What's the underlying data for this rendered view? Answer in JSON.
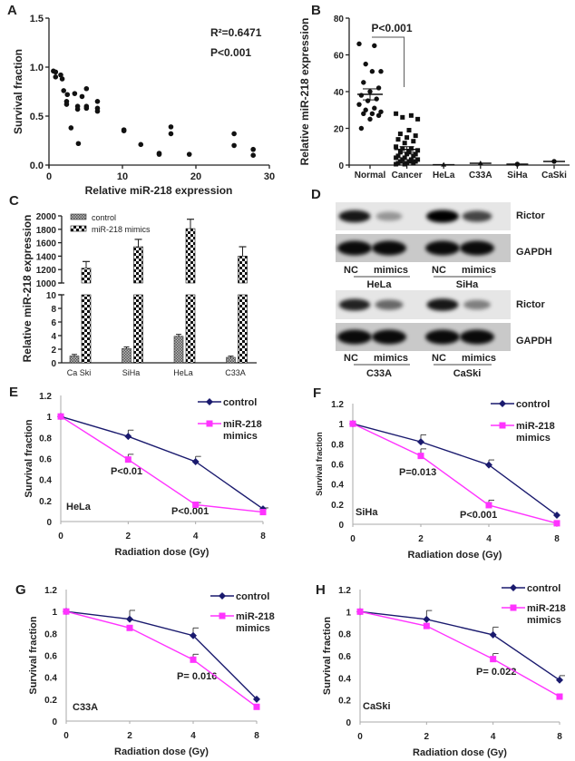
{
  "figure": {
    "panel_letters": [
      "A",
      "B",
      "C",
      "D",
      "E",
      "F",
      "G",
      "H"
    ]
  },
  "chart_data": [
    {
      "panel": "A",
      "type": "scatter",
      "xlabel": "Relative miR-218 expression",
      "ylabel": "Survival fraction",
      "xlim": [
        0,
        30
      ],
      "ylim": [
        0,
        1.5
      ],
      "xticks": [
        "0",
        "10",
        "20",
        "30"
      ],
      "yticks": [
        "0.0",
        "0.5",
        "1.0",
        "1.5"
      ],
      "annotations": [
        "R²=0.6471",
        "P<0.001"
      ],
      "points": [
        [
          0.6,
          0.96
        ],
        [
          0.9,
          0.95
        ],
        [
          0.9,
          0.9
        ],
        [
          1.6,
          0.92
        ],
        [
          1.8,
          0.88
        ],
        [
          2.0,
          0.76
        ],
        [
          2.4,
          0.65
        ],
        [
          2.4,
          0.62
        ],
        [
          2.5,
          0.72
        ],
        [
          3.0,
          0.38
        ],
        [
          3.5,
          0.73
        ],
        [
          3.9,
          0.6
        ],
        [
          3.9,
          0.57
        ],
        [
          4.0,
          0.22
        ],
        [
          4.5,
          0.7
        ],
        [
          5.1,
          0.78
        ],
        [
          5.1,
          0.6
        ],
        [
          5.1,
          0.58
        ],
        [
          6.6,
          0.65
        ],
        [
          6.6,
          0.58
        ],
        [
          6.6,
          0.55
        ],
        [
          10.2,
          0.36
        ],
        [
          10.2,
          0.35
        ],
        [
          12.5,
          0.21
        ],
        [
          15.0,
          0.12
        ],
        [
          15.0,
          0.11
        ],
        [
          16.6,
          0.39
        ],
        [
          16.6,
          0.32
        ],
        [
          19.1,
          0.11
        ],
        [
          25.2,
          0.32
        ],
        [
          25.2,
          0.2
        ],
        [
          27.8,
          0.16
        ],
        [
          27.8,
          0.1
        ]
      ]
    },
    {
      "panel": "B",
      "type": "scatter",
      "ylabel": "Relative miR-218 expression",
      "ylim": [
        0,
        80
      ],
      "yticks": [
        "0",
        "20",
        "40",
        "60",
        "80"
      ],
      "categories": [
        "Normal",
        "Cancer",
        "HeLa",
        "C33A",
        "SiHa",
        "CaSki"
      ],
      "annotations": [
        "P<0.001"
      ],
      "groups": [
        {
          "name": "Normal",
          "marker": "circle",
          "mean": 38.5,
          "sem": 3,
          "values": [
            66,
            65,
            55,
            51,
            51,
            45,
            42,
            40,
            38,
            36,
            35,
            33,
            31,
            30,
            29,
            28,
            28,
            27,
            25,
            20
          ]
        },
        {
          "name": "Cancer",
          "marker": "square",
          "mean": 8.5,
          "sem": 1.5,
          "values": [
            28,
            27,
            26,
            25,
            19,
            17,
            16,
            15,
            14,
            13,
            12,
            10,
            9,
            9,
            8,
            7,
            7,
            6,
            6,
            5,
            5,
            4,
            4,
            3,
            3,
            3,
            2,
            2,
            2,
            1,
            1,
            1,
            0.5,
            0.5
          ]
        },
        {
          "name": "HeLa",
          "marker": "triangle",
          "mean": 0.2,
          "sem": 0,
          "values": [
            0.2
          ]
        },
        {
          "name": "C33A",
          "marker": "triangle",
          "mean": 1.0,
          "sem": 0,
          "values": [
            1.0
          ]
        },
        {
          "name": "SiHa",
          "marker": "diamond",
          "mean": 0.5,
          "sem": 0,
          "values": [
            0.5
          ]
        },
        {
          "name": "CaSki",
          "marker": "circle",
          "mean": 2.0,
          "sem": 0,
          "values": [
            2.0
          ]
        }
      ]
    },
    {
      "panel": "C",
      "type": "bar",
      "ylabel": "Relative miR-218 expression",
      "axis_break": [
        10,
        1000
      ],
      "yticks_lower": [
        "0",
        "2",
        "4",
        "6",
        "8",
        "10"
      ],
      "yticks_upper": [
        "1000",
        "1200",
        "1400",
        "1600",
        "1800",
        "2000"
      ],
      "categories": [
        "Ca Ski",
        "SiHa",
        "HeLa",
        "C33A"
      ],
      "series": [
        {
          "name": "control",
          "values": [
            1.0,
            2.1,
            3.9,
            0.8
          ],
          "errors": [
            0.1,
            0.1,
            0.15,
            0.05
          ]
        },
        {
          "name": "miR-218 mimics",
          "values": [
            1220,
            1540,
            1810,
            1400
          ],
          "errors": [
            100,
            110,
            140,
            140
          ]
        }
      ],
      "legend_placement": "top-left"
    },
    {
      "panel": "E",
      "type": "line",
      "cell_line": "HeLa",
      "xlabel": "Radiation dose (Gy)",
      "ylabel": "Survival fraction",
      "x": [
        "0",
        "2",
        "4",
        "8"
      ],
      "ylim": [
        0,
        1.2
      ],
      "yticks": [
        "0",
        "0.2",
        "0.4",
        "0.6",
        "0.8",
        "1",
        "1.2"
      ],
      "series": [
        {
          "name": "control",
          "color": "#1a1a6e",
          "marker": "diamond",
          "values": [
            1,
            0.81,
            0.57,
            0.12
          ],
          "errors": [
            0,
            0.06,
            0.05,
            0.01
          ]
        },
        {
          "name_lines": [
            "miR-218",
            "mimics"
          ],
          "color": "#ff33ff",
          "marker": "square",
          "values": [
            1,
            0.59,
            0.16,
            0.09
          ],
          "errors": [
            0,
            0.05,
            0.02,
            0
          ]
        }
      ],
      "annotations": [
        "P<0.01",
        "P<0.001"
      ]
    },
    {
      "panel": "F",
      "type": "line",
      "cell_line": "SiHa",
      "xlabel": "Radiation dose (Gy)",
      "ylabel": "Survival fraction",
      "x": [
        "0",
        "2",
        "4",
        "8"
      ],
      "ylim": [
        0,
        1.2
      ],
      "yticks": [
        "0",
        "0.2",
        "0.4",
        "0.6",
        "0.8",
        "1",
        "1.2"
      ],
      "series": [
        {
          "name": "control",
          "color": "#1a1a6e",
          "marker": "diamond",
          "values": [
            1,
            0.82,
            0.59,
            0.09
          ],
          "errors": [
            0,
            0.07,
            0.05,
            0
          ]
        },
        {
          "name_lines": [
            "miR-218",
            "mimics"
          ],
          "color": "#ff33ff",
          "marker": "square",
          "values": [
            1,
            0.68,
            0.19,
            0.01
          ],
          "errors": [
            0,
            0.07,
            0.05,
            0
          ]
        }
      ],
      "annotations": [
        "P=0.013",
        "P<0.001"
      ]
    },
    {
      "panel": "G",
      "type": "line",
      "cell_line": "C33A",
      "xlabel": "Radiation dose (Gy)",
      "ylabel": "Survival fraction",
      "x": [
        "0",
        "2",
        "4",
        "8"
      ],
      "ylim": [
        0,
        1.2
      ],
      "yticks": [
        "0",
        "0.2",
        "0.4",
        "0.6",
        "0.8",
        "1",
        "1.2"
      ],
      "series": [
        {
          "name": "control",
          "color": "#1a1a6e",
          "marker": "diamond",
          "values": [
            1,
            0.93,
            0.78,
            0.2
          ],
          "errors": [
            0,
            0.08,
            0.07,
            0
          ]
        },
        {
          "name_lines": [
            "miR-218",
            "mimics"
          ],
          "color": "#ff33ff",
          "marker": "square",
          "values": [
            1,
            0.85,
            0.56,
            0.13
          ],
          "errors": [
            0,
            0,
            0.05,
            0
          ]
        }
      ],
      "annotations": [
        "P= 0.016"
      ]
    },
    {
      "panel": "H",
      "type": "line",
      "cell_line": "CaSki",
      "xlabel": "Radiation dose (Gy)",
      "ylabel": "Survival fraction",
      "x": [
        "0",
        "2",
        "4",
        "8"
      ],
      "ylim": [
        0,
        1.2
      ],
      "yticks": [
        "0",
        "0.2",
        "0.4",
        "0.6",
        "0.8",
        "1",
        "1.2"
      ],
      "series": [
        {
          "name": "control",
          "color": "#1a1a6e",
          "marker": "diamond",
          "values": [
            1,
            0.93,
            0.79,
            0.38
          ],
          "errors": [
            0,
            0.08,
            0.07,
            0.04
          ]
        },
        {
          "name_lines": [
            "miR-218",
            "mimics"
          ],
          "color": "#ff33ff",
          "marker": "square",
          "values": [
            1,
            0.87,
            0.57,
            0.23
          ],
          "errors": [
            0,
            0,
            0.05,
            0
          ]
        }
      ],
      "annotations": [
        "P= 0.022"
      ]
    }
  ],
  "blot": {
    "panel": "D",
    "rows": [
      "Rictor",
      "GAPDH"
    ],
    "lanes": [
      "NC",
      "mimics",
      "NC",
      "mimics"
    ],
    "top_groups": [
      "HeLa",
      "SiHa"
    ],
    "bottom_groups": [
      "C33A",
      "CaSki"
    ],
    "top_rictor_intensity": [
      0.9,
      0.35,
      1.0,
      0.7
    ],
    "bottom_rictor_intensity": [
      0.85,
      0.55,
      0.9,
      0.45
    ]
  }
}
